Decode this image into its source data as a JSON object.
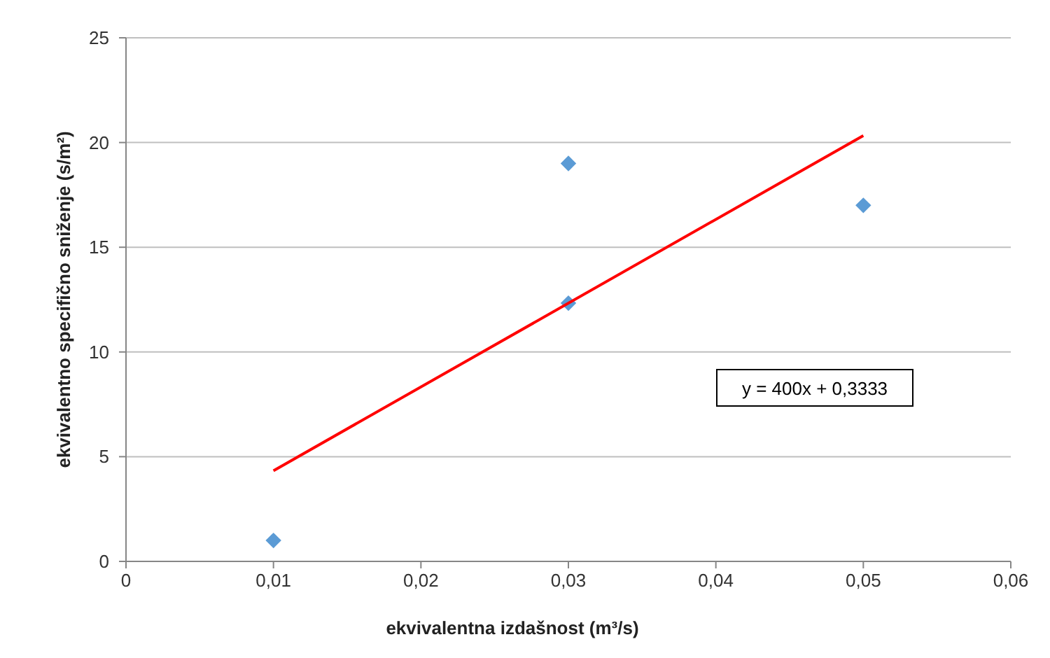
{
  "chart_data": {
    "type": "scatter",
    "xlabel": "ekvivalentna izdašnost (m³/s)",
    "ylabel": "ekvivalentno specifično sniženje (s/m²)",
    "xlim": [
      0,
      0.06
    ],
    "ylim": [
      0,
      25
    ],
    "xticks": [
      0,
      {
        "value": 0.01,
        "label": "0,01"
      },
      {
        "value": 0.02,
        "label": "0,02"
      },
      {
        "value": 0.03,
        "label": "0,03"
      },
      {
        "value": 0.04,
        "label": "0,04"
      },
      {
        "value": 0.05,
        "label": "0,05"
      },
      {
        "value": 0.06,
        "label": "0,06"
      }
    ],
    "yticks": [
      0,
      5,
      10,
      15,
      20,
      25
    ],
    "grid": "y",
    "marker": "diamond",
    "series": [
      {
        "color": "#5b9bd5",
        "x": [
          0.01,
          0.03,
          0.03,
          0.05
        ],
        "values": [
          1,
          19,
          12.33,
          17
        ]
      },
      {
        "type": "line",
        "color": "#ff0000",
        "x": [
          0.01,
          0.05
        ],
        "values": [
          4.33,
          20.33
        ],
        "marker": "none",
        "line_style": "solid"
      }
    ],
    "annotations": [
      "y = 400x + 0,3333"
    ]
  }
}
